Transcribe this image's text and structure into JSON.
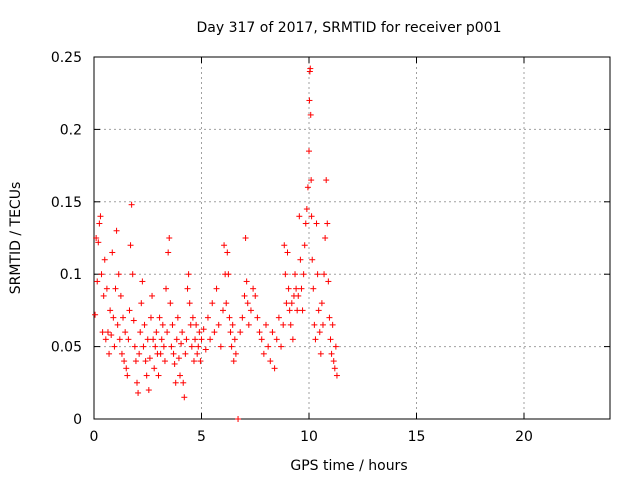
{
  "chart_data": {
    "type": "scatter",
    "title": "Day 317 of 2017, SRMTID for receiver p001",
    "xlabel": "GPS time / hours",
    "ylabel": "SRMTID / TECUs",
    "xlim": [
      0,
      24
    ],
    "ylim": [
      0,
      0.25
    ],
    "xticks": [
      0,
      5,
      10,
      15,
      20
    ],
    "yticks": [
      0,
      0.05,
      0.1,
      0.15,
      0.2,
      0.25
    ],
    "xtick_labels": [
      "0",
      "5",
      "10",
      "15",
      "20"
    ],
    "ytick_labels": [
      "0",
      "0.05",
      "0.1",
      "0.15",
      "0.2",
      "0.25"
    ],
    "grid": true,
    "marker": "+",
    "series": [
      {
        "name": "SRMTID",
        "color": "#ff0000",
        "points": [
          [
            0.05,
            0.072
          ],
          [
            0.1,
            0.125
          ],
          [
            0.15,
            0.095
          ],
          [
            0.2,
            0.122
          ],
          [
            0.25,
            0.135
          ],
          [
            0.3,
            0.14
          ],
          [
            0.35,
            0.1
          ],
          [
            0.4,
            0.06
          ],
          [
            0.45,
            0.085
          ],
          [
            0.5,
            0.11
          ],
          [
            0.55,
            0.055
          ],
          [
            0.6,
            0.09
          ],
          [
            0.65,
            0.06
          ],
          [
            0.7,
            0.045
          ],
          [
            0.75,
            0.075
          ],
          [
            0.8,
            0.058
          ],
          [
            0.85,
            0.115
          ],
          [
            0.9,
            0.07
          ],
          [
            0.95,
            0.05
          ],
          [
            1.0,
            0.09
          ],
          [
            1.05,
            0.13
          ],
          [
            1.1,
            0.065
          ],
          [
            1.15,
            0.1
          ],
          [
            1.2,
            0.055
          ],
          [
            1.25,
            0.085
          ],
          [
            1.3,
            0.045
          ],
          [
            1.35,
            0.07
          ],
          [
            1.4,
            0.04
          ],
          [
            1.45,
            0.06
          ],
          [
            1.5,
            0.035
          ],
          [
            1.55,
            0.03
          ],
          [
            1.6,
            0.055
          ],
          [
            1.65,
            0.075
          ],
          [
            1.7,
            0.12
          ],
          [
            1.75,
            0.148
          ],
          [
            1.8,
            0.1
          ],
          [
            1.85,
            0.068
          ],
          [
            1.9,
            0.05
          ],
          [
            1.95,
            0.04
          ],
          [
            2.0,
            0.025
          ],
          [
            2.05,
            0.018
          ],
          [
            2.1,
            0.045
          ],
          [
            2.15,
            0.06
          ],
          [
            2.2,
            0.08
          ],
          [
            2.25,
            0.095
          ],
          [
            2.3,
            0.05
          ],
          [
            2.35,
            0.065
          ],
          [
            2.4,
            0.04
          ],
          [
            2.45,
            0.03
          ],
          [
            2.5,
            0.055
          ],
          [
            2.55,
            0.02
          ],
          [
            2.6,
            0.042
          ],
          [
            2.65,
            0.07
          ],
          [
            2.7,
            0.085
          ],
          [
            2.75,
            0.055
          ],
          [
            2.8,
            0.035
          ],
          [
            2.85,
            0.05
          ],
          [
            2.9,
            0.06
          ],
          [
            2.95,
            0.045
          ],
          [
            3.0,
            0.03
          ],
          [
            3.05,
            0.07
          ],
          [
            3.1,
            0.045
          ],
          [
            3.15,
            0.055
          ],
          [
            3.2,
            0.065
          ],
          [
            3.25,
            0.05
          ],
          [
            3.3,
            0.04
          ],
          [
            3.35,
            0.09
          ],
          [
            3.4,
            0.06
          ],
          [
            3.45,
            0.115
          ],
          [
            3.5,
            0.125
          ],
          [
            3.55,
            0.08
          ],
          [
            3.6,
            0.05
          ],
          [
            3.65,
            0.065
          ],
          [
            3.7,
            0.045
          ],
          [
            3.75,
            0.038
          ],
          [
            3.8,
            0.025
          ],
          [
            3.85,
            0.055
          ],
          [
            3.9,
            0.07
          ],
          [
            3.95,
            0.042
          ],
          [
            4.0,
            0.03
          ],
          [
            4.05,
            0.052
          ],
          [
            4.1,
            0.06
          ],
          [
            4.15,
            0.025
          ],
          [
            4.2,
            0.015
          ],
          [
            4.25,
            0.045
          ],
          [
            4.3,
            0.055
          ],
          [
            4.35,
            0.09
          ],
          [
            4.4,
            0.1
          ],
          [
            4.45,
            0.08
          ],
          [
            4.5,
            0.065
          ],
          [
            4.55,
            0.05
          ],
          [
            4.6,
            0.07
          ],
          [
            4.65,
            0.04
          ],
          [
            4.7,
            0.055
          ],
          [
            4.75,
            0.065
          ],
          [
            4.8,
            0.045
          ],
          [
            4.85,
            0.05
          ],
          [
            4.9,
            0.06
          ],
          [
            4.95,
            0.04
          ],
          [
            5.0,
            0.055
          ],
          [
            5.1,
            0.062
          ],
          [
            5.2,
            0.048
          ],
          [
            5.3,
            0.07
          ],
          [
            5.4,
            0.055
          ],
          [
            5.5,
            0.08
          ],
          [
            5.6,
            0.06
          ],
          [
            5.7,
            0.09
          ],
          [
            5.8,
            0.065
          ],
          [
            5.9,
            0.05
          ],
          [
            6.0,
            0.075
          ],
          [
            6.05,
            0.12
          ],
          [
            6.1,
            0.1
          ],
          [
            6.15,
            0.08
          ],
          [
            6.2,
            0.115
          ],
          [
            6.25,
            0.1
          ],
          [
            6.3,
            0.07
          ],
          [
            6.35,
            0.06
          ],
          [
            6.4,
            0.05
          ],
          [
            6.45,
            0.065
          ],
          [
            6.5,
            0.04
          ],
          [
            6.55,
            0.055
          ],
          [
            6.6,
            0.045
          ],
          [
            6.7,
            0.0
          ],
          [
            6.8,
            0.06
          ],
          [
            6.9,
            0.07
          ],
          [
            7.0,
            0.085
          ],
          [
            7.05,
            0.125
          ],
          [
            7.1,
            0.095
          ],
          [
            7.15,
            0.08
          ],
          [
            7.2,
            0.065
          ],
          [
            7.3,
            0.075
          ],
          [
            7.4,
            0.09
          ],
          [
            7.5,
            0.085
          ],
          [
            7.6,
            0.07
          ],
          [
            7.7,
            0.06
          ],
          [
            7.8,
            0.055
          ],
          [
            7.9,
            0.045
          ],
          [
            8.0,
            0.065
          ],
          [
            8.1,
            0.05
          ],
          [
            8.2,
            0.04
          ],
          [
            8.3,
            0.06
          ],
          [
            8.4,
            0.035
          ],
          [
            8.5,
            0.055
          ],
          [
            8.6,
            0.07
          ],
          [
            8.7,
            0.05
          ],
          [
            8.8,
            0.065
          ],
          [
            8.85,
            0.12
          ],
          [
            8.9,
            0.1
          ],
          [
            8.95,
            0.08
          ],
          [
            9.0,
            0.115
          ],
          [
            9.05,
            0.09
          ],
          [
            9.1,
            0.075
          ],
          [
            9.15,
            0.065
          ],
          [
            9.2,
            0.08
          ],
          [
            9.25,
            0.055
          ],
          [
            9.3,
            0.085
          ],
          [
            9.35,
            0.1
          ],
          [
            9.4,
            0.09
          ],
          [
            9.45,
            0.075
          ],
          [
            9.5,
            0.085
          ],
          [
            9.55,
            0.14
          ],
          [
            9.6,
            0.11
          ],
          [
            9.65,
            0.09
          ],
          [
            9.7,
            0.075
          ],
          [
            9.75,
            0.1
          ],
          [
            9.8,
            0.12
          ],
          [
            9.85,
            0.135
          ],
          [
            9.9,
            0.145
          ],
          [
            9.95,
            0.16
          ],
          [
            10.0,
            0.185
          ],
          [
            10.02,
            0.22
          ],
          [
            10.04,
            0.24
          ],
          [
            10.06,
            0.242
          ],
          [
            10.08,
            0.21
          ],
          [
            10.1,
            0.165
          ],
          [
            10.12,
            0.14
          ],
          [
            10.15,
            0.11
          ],
          [
            10.2,
            0.09
          ],
          [
            10.25,
            0.065
          ],
          [
            10.3,
            0.055
          ],
          [
            10.35,
            0.135
          ],
          [
            10.4,
            0.1
          ],
          [
            10.45,
            0.075
          ],
          [
            10.5,
            0.06
          ],
          [
            10.55,
            0.045
          ],
          [
            10.6,
            0.08
          ],
          [
            10.65,
            0.065
          ],
          [
            10.7,
            0.1
          ],
          [
            10.75,
            0.125
          ],
          [
            10.8,
            0.165
          ],
          [
            10.85,
            0.135
          ],
          [
            10.9,
            0.095
          ],
          [
            10.95,
            0.07
          ],
          [
            11.0,
            0.055
          ],
          [
            11.05,
            0.045
          ],
          [
            11.1,
            0.065
          ],
          [
            11.15,
            0.04
          ],
          [
            11.2,
            0.035
          ],
          [
            11.25,
            0.05
          ],
          [
            11.3,
            0.03
          ]
        ]
      }
    ]
  }
}
